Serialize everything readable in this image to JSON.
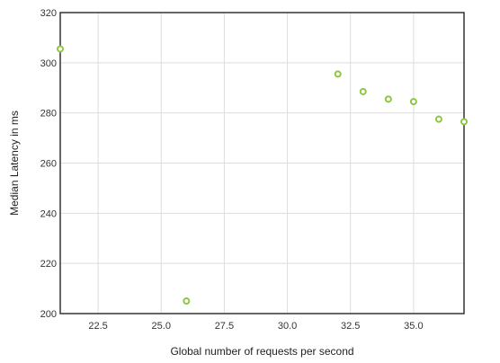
{
  "chart_data": {
    "type": "scatter",
    "title": "",
    "xlabel": "Global number of requests per second",
    "ylabel": "Median Latency in ms",
    "xlim": [
      21,
      37
    ],
    "ylim": [
      200,
      320
    ],
    "x_ticks": [
      "22.5",
      "25.0",
      "27.5",
      "30.0",
      "32.5",
      "35.0"
    ],
    "y_ticks": [
      "200",
      "220",
      "240",
      "260",
      "280",
      "300",
      "320"
    ],
    "grid": true,
    "legend": "none",
    "marker_color": "#8dc63f",
    "series": [
      {
        "points": [
          {
            "x": 21,
            "y": 305.5
          },
          {
            "x": 26,
            "y": 205
          },
          {
            "x": 32,
            "y": 295.5
          },
          {
            "x": 33,
            "y": 288.5
          },
          {
            "x": 34,
            "y": 285.5
          },
          {
            "x": 35,
            "y": 284.5
          },
          {
            "x": 36,
            "y": 277.5
          },
          {
            "x": 37,
            "y": 276.5
          }
        ]
      }
    ]
  }
}
